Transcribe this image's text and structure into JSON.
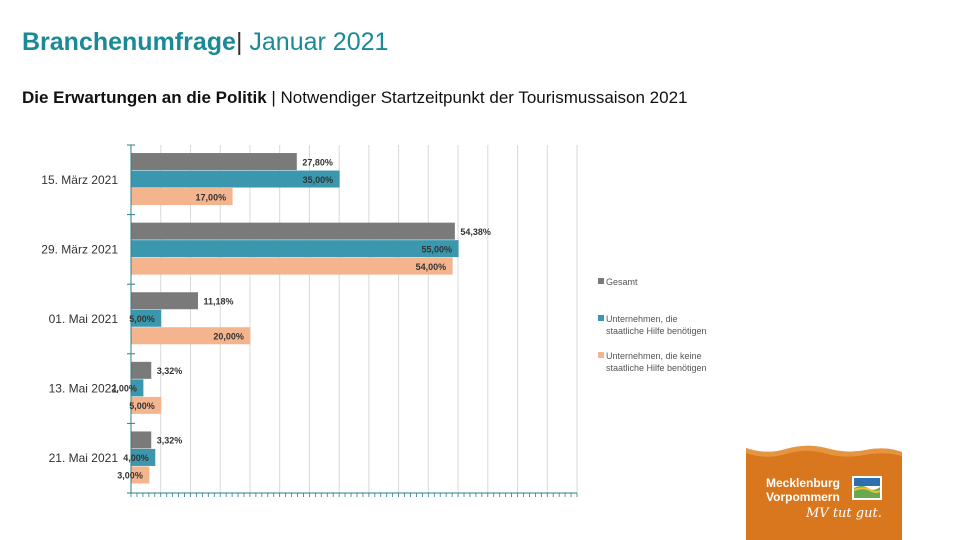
{
  "header": {
    "title_bold": "Branchenumfrage",
    "title_sep": "|",
    "title_rest": " Januar 2021",
    "subtitle_bold": "Die Erwartungen an die Politik",
    "subtitle_rest": " | Notwendiger Startzeitpunkt der Tourismussaison 2021"
  },
  "chart_data": {
    "type": "bar",
    "orientation": "horizontal",
    "categories": [
      "15. März 2021",
      "29. März 2021",
      "01. Mai 2021",
      "13. Mai 2021",
      "21. Mai 2021"
    ],
    "series": [
      {
        "name": "Gesamt",
        "color": "#7a7a7a",
        "values": [
          27.8,
          54.38,
          11.18,
          3.32,
          3.32
        ],
        "labels": [
          "27,80%",
          "54,38%",
          "11,18%",
          "3,32%",
          "3,32%"
        ]
      },
      {
        "name": "Unternehmen, die\nstaatliche Hilfe benötigen",
        "color": "#3a97ad",
        "values": [
          35.0,
          55.0,
          5.0,
          2.0,
          4.0
        ],
        "labels": [
          "35,00%",
          "55,00%",
          "5,00%",
          "2,00%",
          "4,00%"
        ]
      },
      {
        "name": "Unternehmen, die keine\nstaatliche Hilfe benötigen",
        "color": "#f3b48e",
        "values": [
          17.0,
          54.0,
          20.0,
          5.0,
          3.0
        ],
        "labels": [
          "17,00%",
          "54,00%",
          "20,00%",
          "5,00%",
          "3,00%"
        ]
      }
    ],
    "xlim": [
      0,
      75
    ],
    "grid": true,
    "legend_position": "right"
  },
  "logo": {
    "line1": "Mecklenburg",
    "line2": "Vorpommern",
    "slogan": "MV tut gut."
  }
}
